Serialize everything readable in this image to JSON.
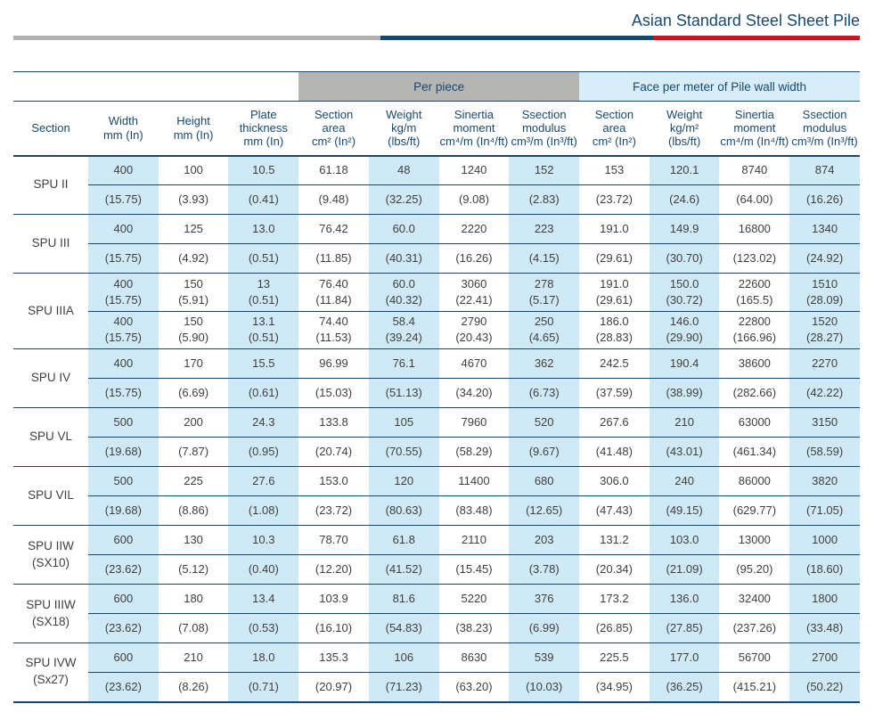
{
  "header": {
    "title": "Asian Standard Steel Sheet Pile"
  },
  "colors": {
    "navy": "#17496f",
    "blue-col": "#cfe9f6",
    "blue-header": "#d7eefa",
    "gray-header": "#b5b5b4",
    "rule-gray": "#b2b0b0",
    "rule-red": "#c4191f",
    "body-text": "#3f3f3f"
  },
  "table": {
    "group_headers": {
      "per_piece": "Per piece",
      "face": "Face per meter of Pile wall width"
    },
    "columns": [
      "Section",
      "Width\nmm (In)",
      "Height\nmm (In)",
      "Plate\nthickness\nmm (In)",
      "Section\narea\ncm² (In²)",
      "Weight\nkg/m\n(lbs/ft)",
      "Sinertia\nmoment\ncm⁴/m (In⁴/ft)",
      "Ssection\nmodulus\ncm³/m (In³/ft)",
      "Section\narea\ncm² (In²)",
      "Weight\nkg/m²\n(lbs/ft)",
      "Sinertia\nmoment\ncm⁴/m (In⁴/ft)",
      "Ssection\nmodulus\ncm³/m (In³/ft)"
    ],
    "groups": [
      {
        "section": "SPU II",
        "rows": [
          [
            "400",
            "100",
            "10.5",
            "61.18",
            "48",
            "1240",
            "152",
            "153",
            "120.1",
            "8740",
            "874"
          ],
          [
            "(15.75)",
            "(3.93)",
            "(0.41)",
            "(9.48)",
            "(32.25)",
            "(9.08)",
            "(2.83)",
            "(23.72)",
            "(24.6)",
            "(64.00)",
            "(16.26)"
          ]
        ]
      },
      {
        "section": "SPU III",
        "rows": [
          [
            "400",
            "125",
            "13.0",
            "76.42",
            "60.0",
            "2220",
            "223",
            "191.0",
            "149.9",
            "16800",
            "1340"
          ],
          [
            "(15.75)",
            "(4.92)",
            "(0.51)",
            "(11.85)",
            "(40.31)",
            "(16.26)",
            "(4.15)",
            "(29.61)",
            "(30.70)",
            "(123.02)",
            "(24.92)"
          ]
        ]
      },
      {
        "section": "SPU IIIA",
        "tall": true,
        "rows": [
          [
            "400\n(15.75)",
            "150\n(5.91)",
            "13\n(0.51)",
            "76.40\n(11.84)",
            "60.0\n(40.32)",
            "3060\n(22.41)",
            "278\n(5.17)",
            "191.0\n(29.61)",
            "150.0\n(30.72)",
            "22600\n(165.5)",
            "1510\n(28.09)"
          ],
          [
            "400\n(15.75)",
            "150\n(5.90)",
            "13.1\n(0.51)",
            "74.40\n(11.53)",
            "58.4\n(39.24)",
            "2790\n(20.43)",
            "250\n(4.65)",
            "186.0\n(28.83)",
            "146.0\n(29.90)",
            "22800\n(166.96)",
            "1520\n(28.27)"
          ]
        ]
      },
      {
        "section": "SPU IV",
        "rows": [
          [
            "400",
            "170",
            "15.5",
            "96.99",
            "76.1",
            "4670",
            "362",
            "242.5",
            "190.4",
            "38600",
            "2270"
          ],
          [
            "(15.75)",
            "(6.69)",
            "(0.61)",
            "(15.03)",
            "(51.13)",
            "(34.20)",
            "(6.73)",
            "(37.59)",
            "(38.99)",
            "(282.66)",
            "(42.22)"
          ]
        ]
      },
      {
        "section": "SPU VL",
        "rows": [
          [
            "500",
            "200",
            "24.3",
            "133.8",
            "105",
            "7960",
            "520",
            "267.6",
            "210",
            "63000",
            "3150"
          ],
          [
            "(19.68)",
            "(7.87)",
            "(0.95)",
            "(20.74)",
            "(70.55)",
            "(58.29)",
            "(9.67)",
            "(41.48)",
            "(43.01)",
            "(461.34)",
            "(58.59)"
          ]
        ]
      },
      {
        "section": "SPU VIL",
        "rows": [
          [
            "500",
            "225",
            "27.6",
            "153.0",
            "120",
            "11400",
            "680",
            "306.0",
            "240",
            "86000",
            "3820"
          ],
          [
            "(19.68)",
            "(8.86)",
            "(1.08)",
            "(23.72)",
            "(80.63)",
            "(83.48)",
            "(12.65)",
            "(47.43)",
            "(49.15)",
            "(629.77)",
            "(71.05)"
          ]
        ]
      },
      {
        "section": "SPU IIW\n(SX10)",
        "rows": [
          [
            "600",
            "130",
            "10.3",
            "78.70",
            "61.8",
            "2110",
            "203",
            "131.2",
            "103.0",
            "13000",
            "1000"
          ],
          [
            "(23.62)",
            "(5.12)",
            "(0.40)",
            "(12.20)",
            "(41.52)",
            "(15.45)",
            "(3.78)",
            "(20.34)",
            "(21.09)",
            "(95.20)",
            "(18.60)"
          ]
        ]
      },
      {
        "section": "SPU IIIW\n(SX18)",
        "rows": [
          [
            "600",
            "180",
            "13.4",
            "103.9",
            "81.6",
            "5220",
            "376",
            "173.2",
            "136.0",
            "32400",
            "1800"
          ],
          [
            "(23.62)",
            "(7.08)",
            "(0.53)",
            "(16.10)",
            "(54.83)",
            "(38.23)",
            "(6.99)",
            "(26.85)",
            "(27.85)",
            "(237.26)",
            "(33.48)"
          ]
        ]
      },
      {
        "section": "SPU IVW\n(Sx27)",
        "rows": [
          [
            "600",
            "210",
            "18.0",
            "135.3",
            "106",
            "8630",
            "539",
            "225.5",
            "177.0",
            "56700",
            "2700"
          ],
          [
            "(23.62)",
            "(8.26)",
            "(0.71)",
            "(20.97)",
            "(71.23)",
            "(63.20)",
            "(10.03)",
            "(34.95)",
            "(36.25)",
            "(415.21)",
            "(50.22)"
          ]
        ]
      }
    ]
  }
}
